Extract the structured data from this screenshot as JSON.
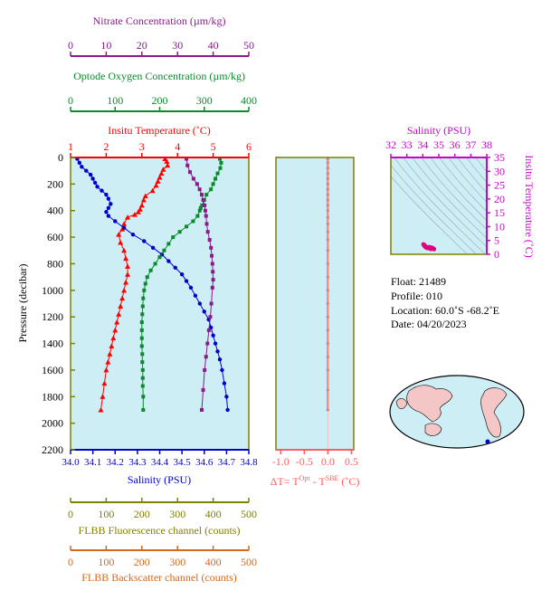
{
  "colors": {
    "nitrate": "#8b1a8b",
    "oxygen": "#0a8a2a",
    "temperature": "#ff0000",
    "salinity": "#0000cc",
    "delta": "#ff5c5c",
    "fluorescence": "#808000",
    "backscatter": "#d2691e",
    "inset_axis": "#cc00cc",
    "panel_bg": "#cdeef5",
    "frame": "#808000"
  },
  "top_axes": {
    "nitrate": {
      "title": "Nitrate Concentration (µm/kg)",
      "ticks": [
        "0",
        "10",
        "20",
        "30",
        "40",
        "50"
      ]
    },
    "oxygen": {
      "title": "Optode Oxygen Concentration (µm/kg)",
      "ticks": [
        "0",
        "100",
        "200",
        "300",
        "400"
      ]
    },
    "temperature": {
      "title": "Insitu Temperature (˚C)",
      "ticks": [
        "1",
        "2",
        "3",
        "4",
        "5",
        "6"
      ]
    }
  },
  "bottom_axes": {
    "salinity": {
      "title": "Salinity (PSU)",
      "ticks": [
        "34.0",
        "34.1",
        "34.2",
        "34.3",
        "34.4",
        "34.5",
        "34.6",
        "34.7",
        "34.8"
      ]
    },
    "delta": {
      "title": "ΔT= T",
      "sup1": "Opt",
      "mid": " - T",
      "sup2": "SBE",
      "unit": " (˚C)",
      "ticks": [
        "-1.0",
        "-0.5",
        "0.0",
        "0.5"
      ]
    },
    "fluorescence": {
      "title": "FLBB Fluorescence channel (counts)",
      "ticks": [
        "0",
        "100",
        "200",
        "300",
        "400",
        "500"
      ]
    },
    "backscatter": {
      "title": "FLBB Backscatter channel (counts)",
      "ticks": [
        "0",
        "100",
        "200",
        "300",
        "400",
        "500"
      ]
    }
  },
  "pressure_axis": {
    "title": "Pressure (decibar)",
    "ticks": [
      "0",
      "200",
      "400",
      "600",
      "800",
      "1000",
      "1200",
      "1400",
      "1600",
      "1800",
      "2000",
      "2200"
    ]
  },
  "inset": {
    "title": "Salinity (PSU)",
    "x_ticks": [
      "32",
      "33",
      "34",
      "35",
      "36",
      "37",
      "38"
    ],
    "y_ticks": [
      "0",
      "5",
      "10",
      "15",
      "20",
      "25",
      "30",
      "35"
    ],
    "y_title": "Insitu Temperature (˚C)"
  },
  "info": {
    "float": "Float:  21489",
    "profile": "Profile:  010",
    "location": "Location:  60.0˚S  -68.2˚E",
    "date": "Date:  04/20/2023"
  },
  "chart_data": {
    "type": "line",
    "y_axis": {
      "label": "Pressure (decibar)",
      "range": [
        0,
        2200
      ],
      "reversed": true
    },
    "series": [
      {
        "name": "Insitu Temperature (˚C)",
        "axis_range": [
          1,
          6
        ],
        "x": [
          3.65,
          3.7,
          3.72,
          3.6,
          3.55,
          3.5,
          3.45,
          3.4,
          3.3,
          3.1,
          3.05,
          3.0,
          2.95,
          2.9,
          2.8,
          2.6,
          2.5,
          2.45,
          2.35,
          2.4,
          2.5,
          2.55,
          2.6,
          2.6,
          2.55,
          2.5,
          2.45,
          2.4,
          2.35,
          2.3,
          2.25,
          2.2,
          2.15,
          2.1,
          2.05,
          2.0,
          1.95,
          1.9,
          1.85
        ],
        "y": [
          10,
          30,
          60,
          90,
          120,
          150,
          180,
          210,
          250,
          290,
          320,
          360,
          390,
          410,
          430,
          450,
          500,
          540,
          580,
          640,
          700,
          760,
          820,
          880,
          940,
          1000,
          1060,
          1120,
          1180,
          1240,
          1300,
          1360,
          1420,
          1480,
          1540,
          1600,
          1700,
          1800,
          1900
        ]
      },
      {
        "name": "Salinity (PSU)",
        "axis_range": [
          34.0,
          34.8
        ],
        "x": [
          34.03,
          34.04,
          34.05,
          34.07,
          34.09,
          34.1,
          34.11,
          34.12,
          34.14,
          34.16,
          34.17,
          34.18,
          34.17,
          34.16,
          34.17,
          34.2,
          34.24,
          34.28,
          34.33,
          34.37,
          34.41,
          34.44,
          34.47,
          34.5,
          34.52,
          34.54,
          34.56,
          34.58,
          34.6,
          34.62,
          34.63,
          34.64,
          34.65,
          34.66,
          34.67,
          34.68,
          34.69,
          34.7,
          34.705
        ],
        "y": [
          10,
          40,
          70,
          100,
          130,
          160,
          190,
          220,
          250,
          280,
          310,
          350,
          380,
          410,
          440,
          480,
          530,
          580,
          630,
          680,
          730,
          780,
          830,
          880,
          930,
          980,
          1040,
          1100,
          1160,
          1220,
          1280,
          1340,
          1400,
          1460,
          1520,
          1600,
          1700,
          1800,
          1900
        ]
      },
      {
        "name": "Optode Oxygen Concentration (µm/kg)",
        "axis_range": [
          0,
          400
        ],
        "x": [
          335,
          338,
          336,
          330,
          325,
          320,
          315,
          305,
          300,
          295,
          292,
          290,
          285,
          275,
          260,
          245,
          230,
          220,
          210,
          200,
          190,
          180,
          172,
          168,
          165,
          163,
          162,
          161,
          160,
          160,
          160,
          160,
          161,
          161,
          162,
          162,
          162,
          163,
          163
        ],
        "y": [
          10,
          40,
          80,
          120,
          160,
          200,
          240,
          280,
          320,
          360,
          380,
          400,
          440,
          480,
          520,
          560,
          600,
          650,
          700,
          750,
          800,
          850,
          900,
          950,
          1000,
          1060,
          1120,
          1180,
          1240,
          1300,
          1360,
          1420,
          1480,
          1540,
          1600,
          1660,
          1720,
          1800,
          1900
        ]
      },
      {
        "name": "Nitrate Concentration (µm/kg)",
        "axis_range": [
          0,
          50
        ],
        "x": [
          32.5,
          32.8,
          33.5,
          34.5,
          35.5,
          36.2,
          36.8,
          37.2,
          37.6,
          37.8,
          38.0,
          38.2,
          38.5,
          39.0,
          39.4,
          39.6,
          39.8,
          39.9,
          40.0,
          39.8,
          39.5,
          39.2,
          38.8,
          38.4,
          38.0,
          37.6,
          37.2,
          36.8
        ],
        "y": [
          10,
          60,
          110,
          160,
          200,
          240,
          280,
          320,
          360,
          400,
          440,
          500,
          560,
          620,
          680,
          740,
          800,
          860,
          920,
          980,
          1100,
          1200,
          1300,
          1400,
          1500,
          1600,
          1750,
          1900
        ]
      },
      {
        "name": "ΔT= T Opt - T SBE (˚C)",
        "axis_range": [
          -1.1,
          0.55
        ],
        "x": [
          0.0,
          0.0,
          0.0,
          0.0,
          0.0,
          0.0,
          0.0,
          0.0,
          0.0,
          0.0,
          0.0,
          0.0,
          0.0,
          0.0,
          0.0,
          0.0,
          0.0,
          0.0,
          0.0,
          0.0,
          0.0,
          0.0,
          0.0,
          0.0,
          0.0,
          0.0,
          0.0
        ],
        "y": [
          10,
          40,
          80,
          120,
          160,
          200,
          240,
          280,
          320,
          360,
          400,
          450,
          500,
          560,
          620,
          700,
          800,
          900,
          1000,
          1100,
          1200,
          1300,
          1400,
          1500,
          1600,
          1750,
          1900
        ]
      }
    ],
    "inset_ts": {
      "type": "scatter",
      "xlabel": "Salinity (PSU)",
      "ylabel": "Insitu Temperature (˚C)",
      "xlim": [
        32,
        38
      ],
      "ylim": [
        0,
        35
      ],
      "x": [
        34.04,
        34.08,
        34.12,
        34.16,
        34.2,
        34.28,
        34.38,
        34.5,
        34.6,
        34.68,
        34.7,
        34.5,
        34.3,
        34.18,
        34.1
      ],
      "y": [
        3.6,
        3.4,
        3.1,
        2.9,
        2.5,
        2.4,
        2.6,
        2.5,
        2.3,
        2.0,
        1.85,
        1.9,
        2.2,
        2.5,
        3.0
      ]
    }
  }
}
